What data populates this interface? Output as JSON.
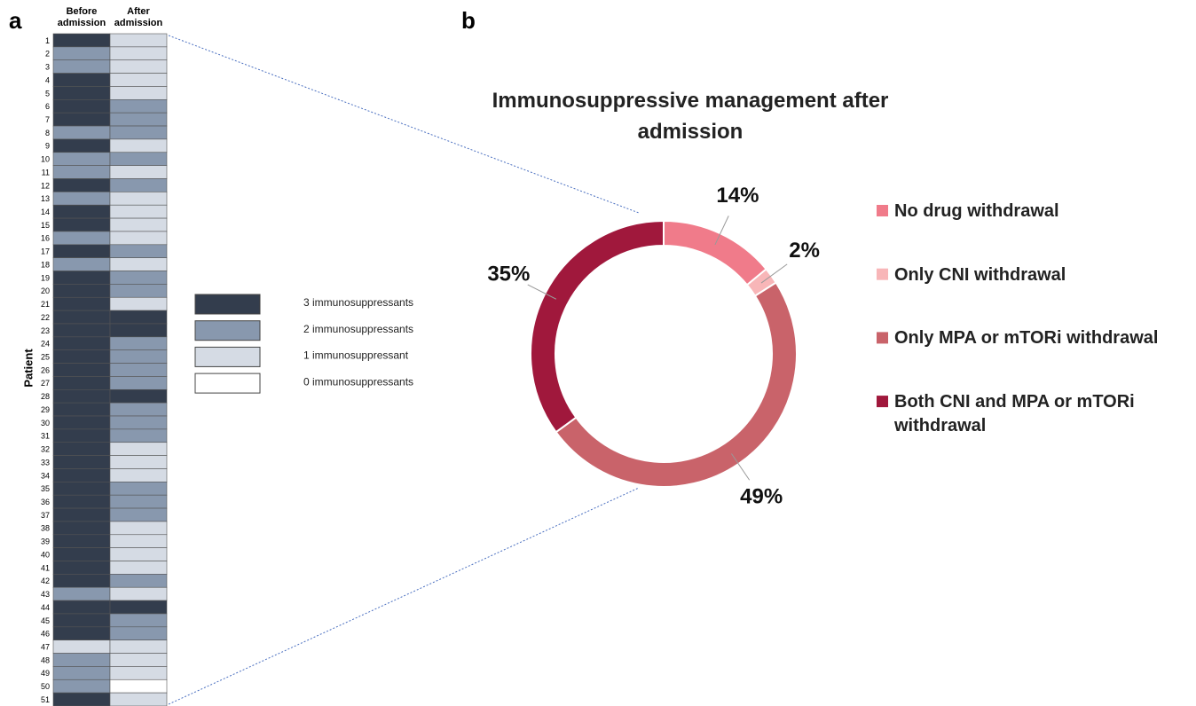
{
  "chart_data": [
    {
      "type": "heatmap",
      "panel_label": "a",
      "y_label": "Patient",
      "categories": [
        1,
        2,
        3,
        4,
        5,
        6,
        7,
        8,
        9,
        10,
        11,
        12,
        13,
        14,
        15,
        16,
        17,
        18,
        19,
        20,
        21,
        22,
        23,
        24,
        25,
        26,
        27,
        28,
        29,
        30,
        31,
        32,
        33,
        34,
        35,
        36,
        37,
        38,
        39,
        40,
        41,
        42,
        43,
        44,
        45,
        46,
        47,
        48,
        49,
        50,
        51
      ],
      "series": [
        {
          "name": "Before admission",
          "values": [
            3,
            2,
            2,
            3,
            3,
            3,
            3,
            2,
            3,
            2,
            2,
            3,
            2,
            3,
            3,
            2,
            3,
            2,
            3,
            3,
            3,
            3,
            3,
            3,
            3,
            3,
            3,
            3,
            3,
            3,
            3,
            3,
            3,
            3,
            3,
            3,
            3,
            3,
            3,
            3,
            3,
            3,
            2,
            3,
            3,
            3,
            1,
            2,
            2,
            2,
            3
          ]
        },
        {
          "name": "After admission",
          "values": [
            1,
            1,
            1,
            1,
            1,
            2,
            2,
            2,
            1,
            2,
            1,
            2,
            1,
            1,
            1,
            1,
            2,
            1,
            2,
            2,
            1,
            3,
            3,
            2,
            2,
            2,
            2,
            3,
            2,
            2,
            2,
            1,
            1,
            1,
            2,
            2,
            2,
            1,
            1,
            1,
            1,
            2,
            1,
            3,
            2,
            2,
            1,
            1,
            1,
            0,
            1
          ]
        }
      ],
      "legend": [
        {
          "value": 3,
          "label": "3 immunosuppressants",
          "color": "#333d4d"
        },
        {
          "value": 2,
          "label": "2 immunosuppressants",
          "color": "#8898ae"
        },
        {
          "value": 1,
          "label": "1 immunosuppressant",
          "color": "#d5dbe4"
        },
        {
          "value": 0,
          "label": "0 immunosuppressants",
          "color": "#ffffff"
        }
      ]
    },
    {
      "type": "donut",
      "panel_label": "b",
      "title": "Immunosuppressive management after admission",
      "categories": [
        "No drug withdrawal",
        "Only CNI withdrawal",
        "Only MPA or mTORi withdrawal",
        "Both CNI and MPA or mTORi withdrawal"
      ],
      "values": [
        14,
        2,
        49,
        35
      ],
      "value_labels": [
        "14%",
        "2%",
        "49%",
        "35%"
      ],
      "colors": [
        "#f07b8a",
        "#f8b6b8",
        "#c9636a",
        "#a0183c"
      ]
    }
  ]
}
